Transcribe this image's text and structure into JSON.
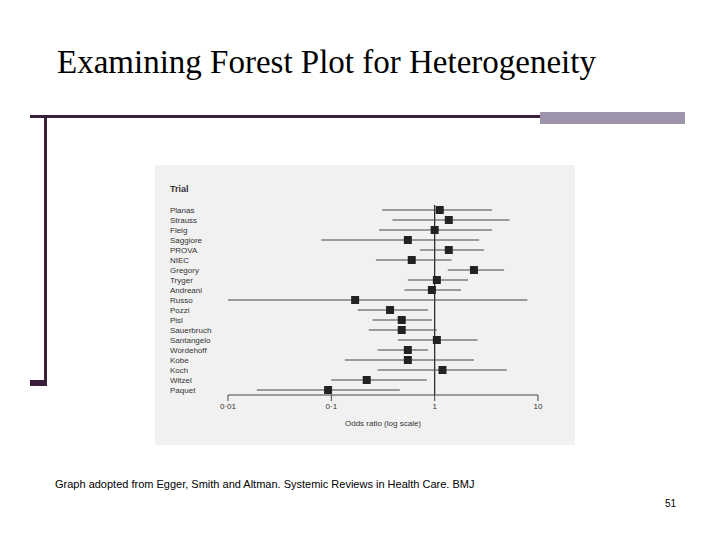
{
  "title": "Examining Forest Plot for Heterogeneity",
  "caption": "Graph adopted from Egger, Smith and Altman. Systemic Reviews in Health Care. BMJ",
  "page_number": "51",
  "chart_data": {
    "type": "forest",
    "y_label": "Trial",
    "x_label": "Odds ratio (log scale)",
    "log": "x",
    "grid": false,
    "marker": "square",
    "color": "#222222",
    "categories": [
      "Paquet",
      "Witzel",
      "Koch",
      "Kobe",
      "Wordehoff",
      "Santangelo",
      "Sauerbruch",
      "Pisl",
      "Pozzi",
      "Russo",
      "Andreani",
      "Tryger",
      "Gregory",
      "NIEC",
      "PROVA",
      "Saggiore",
      "Fleig",
      "Strauss",
      "Planas"
    ],
    "values": [
      0.093,
      0.22,
      1.19,
      0.55,
      0.55,
      1.05,
      0.48,
      0.48,
      0.37,
      0.17,
      0.94,
      1.05,
      2.4,
      0.6,
      1.37,
      0.55,
      1.0,
      1.37,
      1.12
    ],
    "ci_lower": [
      0.019,
      0.1,
      0.28,
      0.135,
      0.28,
      0.44,
      0.23,
      0.25,
      0.18,
      0.01,
      0.51,
      0.55,
      1.34,
      0.27,
      0.72,
      0.08,
      0.29,
      0.39,
      0.31
    ],
    "ci_upper": [
      0.46,
      0.84,
      5.0,
      2.4,
      0.86,
      2.6,
      1.05,
      0.94,
      0.86,
      7.9,
      1.8,
      2.1,
      4.7,
      1.46,
      3.0,
      2.7,
      3.6,
      5.3,
      3.6
    ],
    "reference_line": 1,
    "xlim": [
      0.01,
      10
    ],
    "xticks": [
      {
        "value": 0.01,
        "label": "0·01"
      },
      {
        "value": 0.1,
        "label": "0·1"
      },
      1,
      10
    ]
  }
}
